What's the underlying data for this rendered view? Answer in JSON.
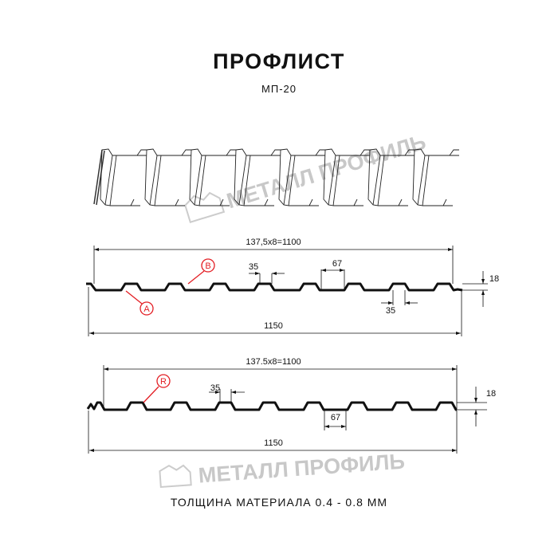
{
  "title": "ПРОФЛИСТ",
  "subtitle": "МП-20",
  "footer": "ТОЛЩИНА МАТЕРИАЛА 0.4 - 0.8 ММ",
  "watermark": "МЕТАЛЛ ПРОФИЛЬ",
  "profile1": {
    "pitch_label": "137,5x8=1100",
    "width_label": "1150",
    "rib_top": "35",
    "rib_bottom": "35",
    "gap": "67",
    "height": "18",
    "marker_a": "A",
    "marker_b": "B"
  },
  "profile2": {
    "pitch_label": "137.5x8=1100",
    "width_label": "1150",
    "rib_top": "35",
    "gap": "67",
    "height": "18",
    "marker_r": "R"
  },
  "colors": {
    "line": "#111111",
    "marker": "#e31e24",
    "watermark": "#c8c8c8"
  }
}
